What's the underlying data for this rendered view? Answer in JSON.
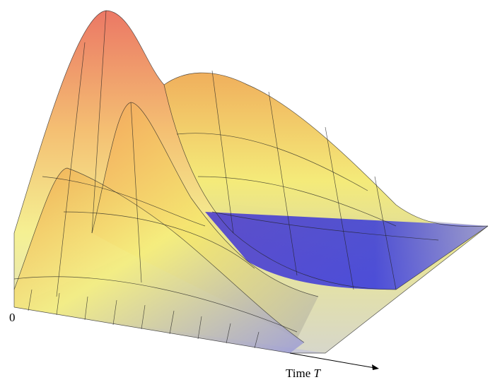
{
  "labels": {
    "origin": "0",
    "axis_name": "Time",
    "axis_variable": "T"
  }
}
